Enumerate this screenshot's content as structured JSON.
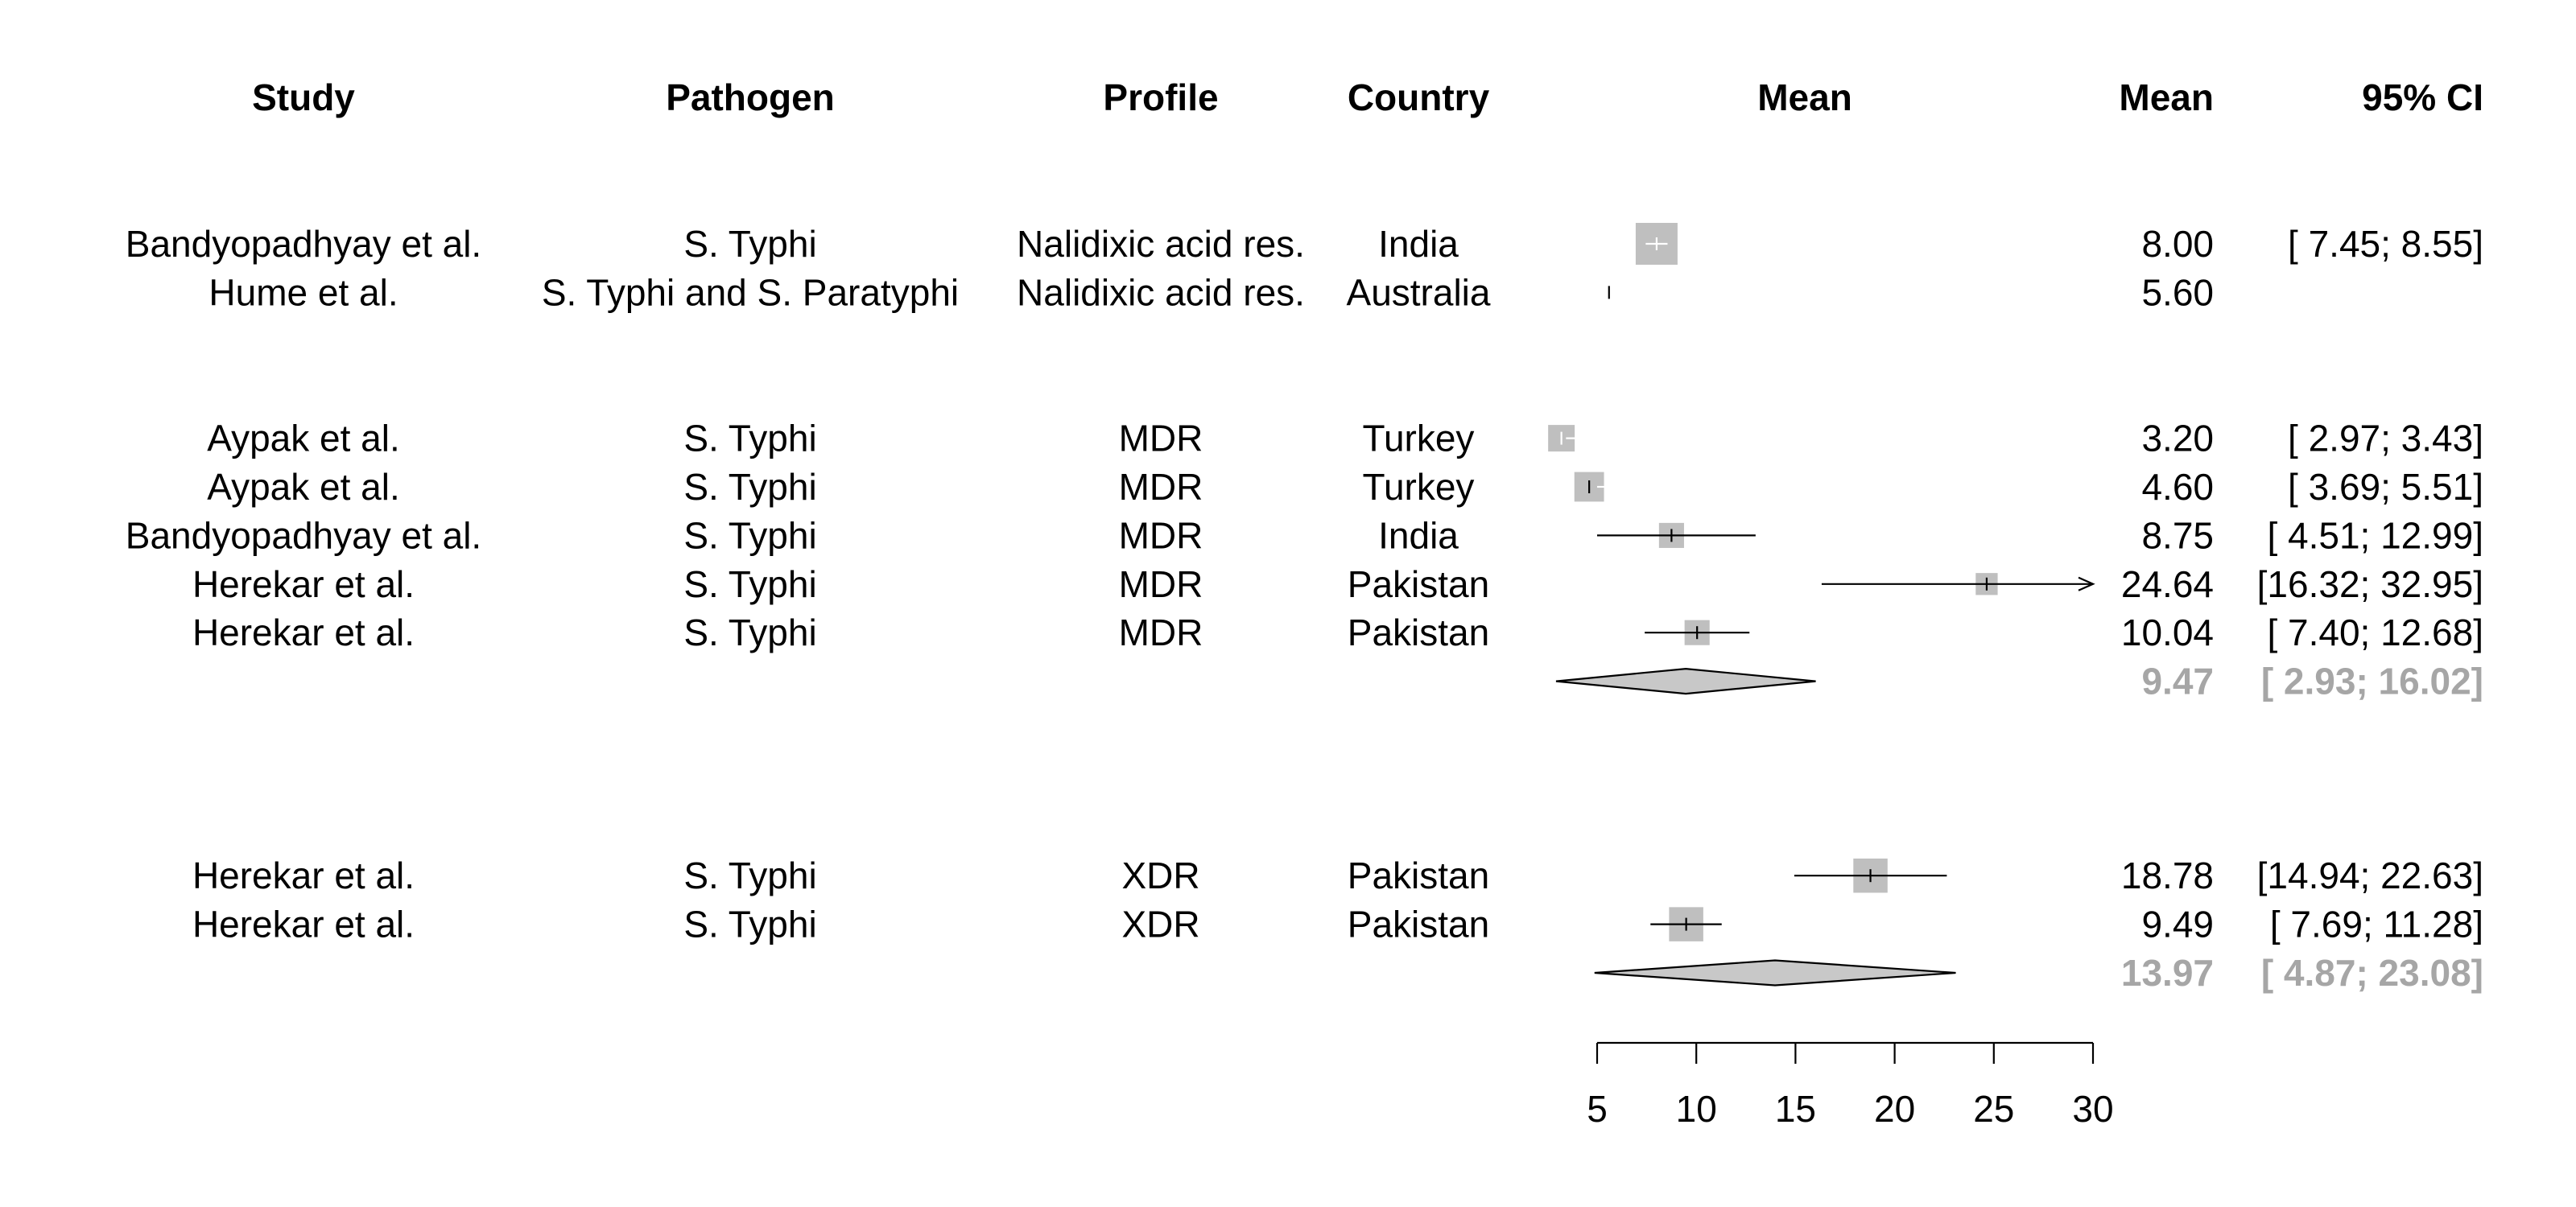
{
  "chart_data": {
    "type": "forest",
    "headers": {
      "study": "Study",
      "pathogen": "Pathogen",
      "profile": "Profile",
      "country": "Country",
      "plot": "Mean",
      "mean": "Mean",
      "ci": "95% CI"
    },
    "xlim": [
      5,
      30
    ],
    "xticks": [
      5,
      10,
      15,
      20,
      25,
      30
    ],
    "xtick_labels": [
      "5",
      "10",
      "15",
      "20",
      "25",
      "30"
    ],
    "rows": [
      {
        "kind": "study",
        "line": 5,
        "study": "Bandyopadhyay et al.",
        "pathogen": "S. Typhi",
        "profile": "Nalidixic acid res.",
        "country": "India",
        "mean": 8.0,
        "lower": 7.45,
        "upper": 8.55,
        "weight": 1.0,
        "mean_text": "8.00",
        "ci_text": "[ 7.45;  8.55]"
      },
      {
        "kind": "study",
        "line": 6,
        "study": "Hume et al.",
        "pathogen": "S. Typhi and S. Paratyphi",
        "profile": "Nalidixic acid res.",
        "country": "Australia",
        "mean": 5.6,
        "lower": 5.6,
        "upper": 5.6,
        "weight": 0.0,
        "mean_text": "5.60",
        "ci_text": ""
      },
      {
        "kind": "study",
        "line": 9,
        "study": "Aypak et al.",
        "pathogen": "S. Typhi",
        "profile": "MDR",
        "country": "Turkey",
        "mean": 3.2,
        "lower": 2.97,
        "upper": 3.43,
        "weight": 0.5,
        "mean_text": "3.20",
        "ci_text": "[ 2.97;  3.43]"
      },
      {
        "kind": "study",
        "line": 10,
        "study": "Aypak et al.",
        "pathogen": "S. Typhi",
        "profile": "MDR",
        "country": "Turkey",
        "mean": 4.6,
        "lower": 3.69,
        "upper": 5.51,
        "weight": 0.6,
        "mean_text": "4.60",
        "ci_text": "[ 3.69;  5.51]"
      },
      {
        "kind": "study",
        "line": 11,
        "study": "Bandyopadhyay et al.",
        "pathogen": "S. Typhi",
        "profile": "MDR",
        "country": "India",
        "mean": 8.75,
        "lower": 4.51,
        "upper": 12.99,
        "weight": 0.45,
        "mean_text": "8.75",
        "ci_text": "[ 4.51; 12.99]"
      },
      {
        "kind": "study",
        "line": 12,
        "study": "Herekar et al.",
        "pathogen": "S. Typhi",
        "profile": "MDR",
        "country": "Pakistan",
        "mean": 24.64,
        "lower": 16.32,
        "upper": 32.95,
        "weight": 0.35,
        "mean_text": "24.64",
        "ci_text": "[16.32; 32.95]"
      },
      {
        "kind": "study",
        "line": 13,
        "study": "Herekar et al.",
        "pathogen": "S. Typhi",
        "profile": "MDR",
        "country": "Pakistan",
        "mean": 10.04,
        "lower": 7.4,
        "upper": 12.68,
        "weight": 0.45,
        "mean_text": "10.04",
        "ci_text": "[ 7.40; 12.68]"
      },
      {
        "kind": "pooled",
        "line": 14,
        "mean": 9.47,
        "lower": 2.93,
        "upper": 16.02,
        "mean_text": "9.47",
        "ci_text": "[ 2.93; 16.02]"
      },
      {
        "kind": "study",
        "line": 18,
        "study": "Herekar et al.",
        "pathogen": "S. Typhi",
        "profile": "XDR",
        "country": "Pakistan",
        "mean": 18.78,
        "lower": 14.94,
        "upper": 22.63,
        "weight": 0.75,
        "mean_text": "18.78",
        "ci_text": "[14.94; 22.63]"
      },
      {
        "kind": "study",
        "line": 19,
        "study": "Herekar et al.",
        "pathogen": "S. Typhi",
        "profile": "XDR",
        "country": "Pakistan",
        "mean": 9.49,
        "lower": 7.69,
        "upper": 11.28,
        "weight": 0.75,
        "mean_text": "9.49",
        "ci_text": "[ 7.69; 11.28]"
      },
      {
        "kind": "pooled",
        "line": 20,
        "mean": 13.97,
        "lower": 4.87,
        "upper": 23.08,
        "mean_text": "13.97",
        "ci_text": "[ 4.87; 23.08]"
      }
    ],
    "colors": {
      "square": "#bfbfbf",
      "diamond": "#c8c8c8",
      "line": "#000000",
      "pooled_text": "#a6a6a6"
    }
  }
}
